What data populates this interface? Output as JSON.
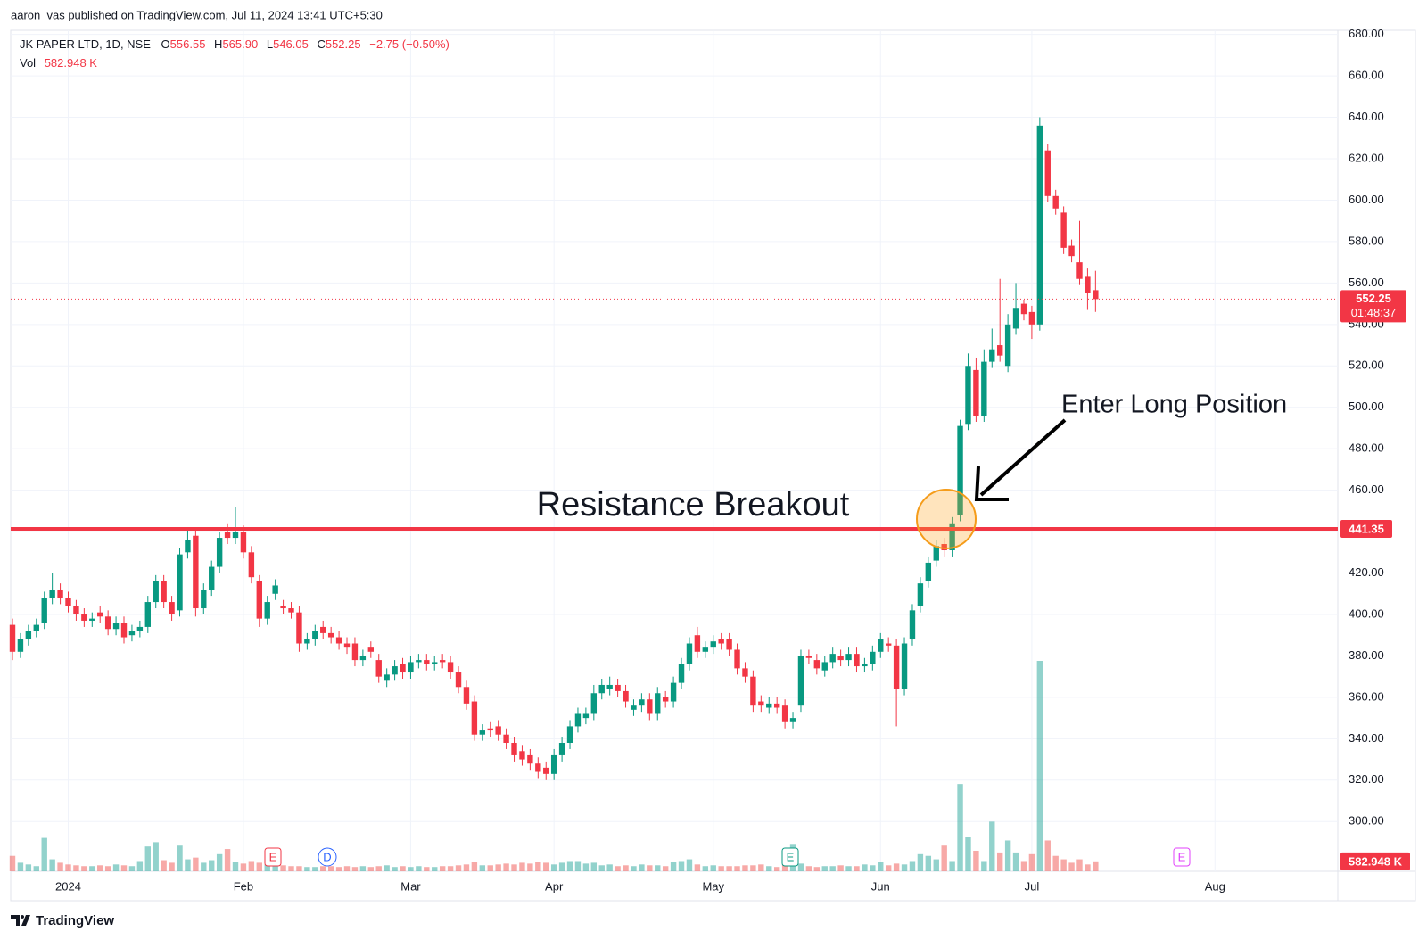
{
  "chart_data": {
    "type": "candlestick",
    "header": "aaron_vas published on TradingView.com, Jul 11, 2024 13:41 UTC+5:30",
    "legend": {
      "symbol": "JK PAPER LTD, 1D, NSE",
      "ohlc": [
        {
          "key": "O",
          "value": "556.55"
        },
        {
          "key": "H",
          "value": "565.90"
        },
        {
          "key": "L",
          "value": "546.05"
        },
        {
          "key": "C",
          "value": "552.25"
        }
      ],
      "change": "−2.75 (−0.50%)",
      "volume_key": "Vol"
    },
    "last_volume_label": "582.948 K",
    "last_price_label": "552.25",
    "countdown": "01:48:37",
    "resistance": {
      "value": 441.35,
      "label": "441.35",
      "text": "Resistance Breakout"
    },
    "entry_text": "Enter Long Position",
    "events": [
      {
        "label": "E"
      },
      {
        "label": "D"
      },
      {
        "label": "E"
      },
      {
        "label": "E"
      }
    ],
    "footer": "TradingView",
    "up_color": "#089981",
    "down_color": "#f23645",
    "volume_up_color": "rgba(38,166,154,0.5)",
    "volume_down_color": "rgba(239,83,80,0.5)",
    "ylim": [
      276,
      682
    ],
    "yticks": [
      {
        "value": 680,
        "label": "680.00"
      },
      {
        "value": 660,
        "label": "660.00"
      },
      {
        "value": 640,
        "label": "640.00"
      },
      {
        "value": 620,
        "label": "620.00"
      },
      {
        "value": 600,
        "label": "600.00"
      },
      {
        "value": 580,
        "label": "580.00"
      },
      {
        "value": 560,
        "label": "560.00"
      },
      {
        "value": 540,
        "label": "540.00"
      },
      {
        "value": 520,
        "label": "520.00"
      },
      {
        "value": 500,
        "label": "500.00"
      },
      {
        "value": 480,
        "label": "480.00"
      },
      {
        "value": 460,
        "label": "460.00"
      },
      {
        "value": 440,
        "label": "440.00"
      },
      {
        "value": 420,
        "label": "420.00"
      },
      {
        "value": 400,
        "label": "400.00"
      },
      {
        "value": 380,
        "label": "380.00"
      },
      {
        "value": 360,
        "label": "360.00"
      },
      {
        "value": 340,
        "label": "340.00"
      },
      {
        "value": 320,
        "label": "320.00"
      },
      {
        "value": 300,
        "label": "300.00"
      }
    ],
    "grid": true,
    "categories": [
      null,
      null,
      null,
      null,
      null,
      null,
      null,
      "2024",
      null,
      null,
      null,
      null,
      null,
      null,
      null,
      null,
      null,
      null,
      null,
      null,
      null,
      null,
      null,
      null,
      null,
      null,
      null,
      null,
      null,
      "Feb",
      null,
      null,
      null,
      null,
      null,
      null,
      null,
      null,
      null,
      null,
      null,
      null,
      null,
      null,
      null,
      null,
      null,
      null,
      null,
      null,
      "Mar",
      null,
      null,
      null,
      null,
      null,
      null,
      null,
      null,
      null,
      null,
      null,
      null,
      null,
      null,
      null,
      null,
      null,
      "Apr",
      null,
      null,
      null,
      null,
      null,
      null,
      null,
      null,
      null,
      null,
      null,
      null,
      null,
      null,
      null,
      null,
      null,
      null,
      null,
      "May",
      null,
      null,
      null,
      null,
      null,
      null,
      null,
      null,
      null,
      null,
      null,
      null,
      null,
      null,
      null,
      null,
      null,
      null,
      null,
      null,
      "Jun",
      null,
      null,
      null,
      null,
      null,
      null,
      null,
      null,
      null,
      null,
      null,
      null,
      null,
      null,
      null,
      null,
      null,
      null,
      "Jul",
      null,
      null,
      null,
      null,
      null,
      null,
      null,
      null,
      null,
      null,
      null,
      null,
      null,
      null,
      null,
      null,
      null,
      null,
      null,
      null,
      null,
      null,
      "Aug",
      null,
      null,
      null,
      null,
      null,
      null,
      null,
      null,
      null,
      null,
      null,
      null,
      null,
      null
    ],
    "open": [
      395,
      382,
      388,
      392,
      396,
      408,
      412,
      408,
      404,
      400,
      397,
      401,
      399,
      393,
      396,
      390,
      392,
      394,
      406,
      416,
      406,
      402,
      430,
      438,
      403,
      412,
      423,
      440,
      437,
      440,
      430,
      416,
      398,
      410,
      404,
      403,
      401,
      386,
      388,
      394,
      391,
      389,
      386,
      386,
      378,
      384,
      378,
      368,
      371,
      376,
      372,
      377,
      378,
      376,
      378,
      377,
      372,
      365,
      358,
      342,
      345,
      346,
      342,
      338,
      334,
      332,
      328,
      326,
      323,
      332,
      338,
      346,
      350,
      352,
      362,
      364,
      366,
      363,
      354,
      356,
      359,
      352,
      360,
      358,
      367,
      376,
      390,
      382,
      384,
      388,
      388,
      383,
      374,
      370,
      358,
      355,
      357,
      356,
      348,
      356,
      380,
      378,
      373,
      377,
      380,
      378,
      381,
      375,
      376,
      382,
      386,
      385,
      364,
      388,
      404,
      416,
      426,
      434,
      431,
      448,
      492,
      518,
      496,
      522,
      530,
      520,
      538,
      550,
      546,
      540,
      624,
      602,
      594,
      578,
      570,
      563,
      556.55,
      null,
      null,
      null,
      null,
      null,
      null,
      null,
      null,
      null,
      null,
      null,
      null,
      null,
      null,
      null,
      null,
      null,
      null,
      null,
      null,
      null,
      null,
      null,
      null,
      null,
      null,
      null,
      null,
      null
    ],
    "high": [
      398,
      391,
      395,
      398,
      411,
      420,
      415,
      411,
      407,
      403,
      401,
      404,
      402,
      399,
      399,
      395,
      397,
      409,
      419,
      419,
      409,
      432,
      441,
      442,
      415,
      426,
      440,
      444,
      452,
      443,
      433,
      419,
      409,
      417,
      407,
      406,
      404,
      391,
      395,
      397,
      394,
      392,
      389,
      389,
      383,
      387,
      381,
      374,
      378,
      379,
      380,
      381,
      381,
      380,
      381,
      380,
      375,
      368,
      361,
      347,
      348,
      349,
      345,
      341,
      337,
      335,
      331,
      329,
      335,
      341,
      349,
      355,
      355,
      366,
      369,
      370,
      369,
      366,
      359,
      362,
      362,
      365,
      363,
      370,
      379,
      389,
      394,
      387,
      390,
      391,
      391,
      386,
      377,
      373,
      361,
      360,
      360,
      359,
      353,
      383,
      383,
      381,
      380,
      384,
      383,
      384,
      384,
      379,
      385,
      391,
      389,
      388,
      389,
      405,
      418,
      428,
      436,
      437,
      447,
      494,
      526,
      524,
      528,
      538,
      562,
      545,
      560,
      552,
      549,
      640,
      627,
      605,
      597,
      581,
      590,
      567,
      565.9,
      null,
      null,
      null,
      null,
      null,
      null,
      null,
      null,
      null,
      null,
      null,
      null,
      null,
      null,
      null,
      null,
      null,
      null,
      null,
      null,
      null,
      null,
      null,
      null,
      null,
      null,
      null,
      null,
      null
    ],
    "low": [
      378,
      379,
      385,
      389,
      393,
      405,
      405,
      401,
      397,
      394,
      394,
      396,
      390,
      390,
      386,
      387,
      389,
      391,
      403,
      403,
      397,
      399,
      427,
      399,
      400,
      409,
      420,
      434,
      434,
      427,
      415,
      394,
      395,
      407,
      400,
      398,
      382,
      383,
      385,
      388,
      386,
      383,
      381,
      375,
      375,
      379,
      367,
      365,
      368,
      369,
      369,
      374,
      373,
      373,
      374,
      369,
      362,
      354,
      339,
      339,
      341,
      339,
      335,
      329,
      327,
      325,
      321,
      320,
      320,
      329,
      335,
      343,
      347,
      349,
      359,
      361,
      360,
      355,
      351,
      353,
      349,
      349,
      355,
      355,
      364,
      373,
      379,
      379,
      381,
      383,
      380,
      371,
      367,
      353,
      353,
      352,
      352,
      345,
      345,
      353,
      376,
      371,
      370,
      374,
      375,
      375,
      372,
      372,
      373,
      379,
      382,
      346,
      361,
      385,
      401,
      413,
      423,
      428,
      428,
      445,
      489,
      493,
      493,
      519,
      522,
      517,
      535,
      542,
      533,
      537,
      599,
      593,
      574,
      570,
      559,
      547,
      546.05,
      null,
      null,
      null,
      null,
      null,
      null,
      null,
      null,
      null,
      null,
      null,
      null,
      null,
      null,
      null,
      null,
      null,
      null,
      null,
      null,
      null,
      null,
      null,
      null,
      null,
      null,
      null,
      null,
      null
    ],
    "close": [
      382,
      388,
      392,
      395,
      408,
      412,
      408,
      404,
      400,
      397,
      398,
      399,
      393,
      396,
      389,
      392,
      394,
      406,
      416,
      406,
      400,
      429,
      436,
      403,
      412,
      423,
      437,
      437,
      440,
      430,
      418,
      398,
      406,
      414,
      403,
      401,
      386,
      388,
      392,
      391,
      389,
      386,
      384,
      378,
      380,
      382,
      370,
      371,
      375,
      372,
      377,
      378,
      376,
      377,
      377,
      372,
      365,
      357,
      342,
      344,
      344,
      342,
      338,
      332,
      330,
      328,
      324,
      323,
      332,
      338,
      346,
      352,
      352,
      362,
      366,
      366,
      363,
      358,
      356,
      359,
      352,
      362,
      358,
      367,
      376,
      386,
      382,
      384,
      387,
      386,
      383,
      374,
      370,
      356,
      356,
      357,
      355,
      348,
      350,
      380,
      379,
      374,
      377,
      381,
      378,
      381,
      375,
      376,
      382,
      388,
      385,
      364,
      386,
      402,
      415,
      425,
      433,
      431,
      444,
      491,
      520,
      496,
      522,
      528,
      525,
      540,
      548,
      545,
      540,
      636,
      602,
      596,
      577,
      573,
      562,
      555,
      552.25,
      null,
      null,
      null,
      null,
      null,
      null,
      null,
      null,
      null,
      null,
      null,
      null,
      null,
      null,
      null,
      null,
      null,
      null,
      null,
      null,
      null,
      null,
      null,
      null,
      null,
      null,
      null,
      null,
      null
    ],
    "volume": [
      900000,
      500000,
      400000,
      300000,
      1950000,
      700000,
      500000,
      400000,
      350000,
      300000,
      300000,
      350000,
      300000,
      400000,
      350000,
      300000,
      600000,
      1450000,
      1700000,
      650000,
      500000,
      1500000,
      700000,
      800000,
      500000,
      650000,
      1000000,
      1300000,
      550000,
      450000,
      600000,
      500000,
      400000,
      600000,
      350000,
      300000,
      300000,
      250000,
      250000,
      300000,
      300000,
      250000,
      300000,
      250000,
      300000,
      250000,
      300000,
      350000,
      250000,
      300000,
      250000,
      300000,
      250000,
      250000,
      300000,
      300000,
      350000,
      400000,
      550000,
      350000,
      350000,
      400000,
      450000,
      400000,
      500000,
      450000,
      550000,
      500000,
      400000,
      500000,
      600000,
      600000,
      450000,
      500000,
      350000,
      400000,
      300000,
      350000,
      300000,
      400000,
      350000,
      350000,
      300000,
      550000,
      600000,
      700000,
      400000,
      300000,
      350000,
      300000,
      300000,
      300000,
      350000,
      350000,
      400000,
      300000,
      250000,
      500000,
      1600000,
      450000,
      300000,
      250000,
      300000,
      300000,
      350000,
      300000,
      300000,
      400000,
      350000,
      550000,
      350000,
      450000,
      400000,
      600000,
      1000000,
      900000,
      700000,
      1500000,
      600000,
      5100000,
      2000000,
      1200000,
      600000,
      2900000,
      1100000,
      1800000,
      1100000,
      600000,
      1000000,
      12300000,
      1800000,
      900000,
      700000,
      500000,
      700000,
      400000,
      582948,
      null,
      null,
      null,
      null,
      null,
      null,
      null,
      null,
      null,
      null,
      null,
      null,
      null,
      null,
      null,
      null,
      null,
      null,
      null,
      null,
      null,
      null,
      null,
      null,
      null,
      null,
      null,
      null,
      null
    ]
  }
}
